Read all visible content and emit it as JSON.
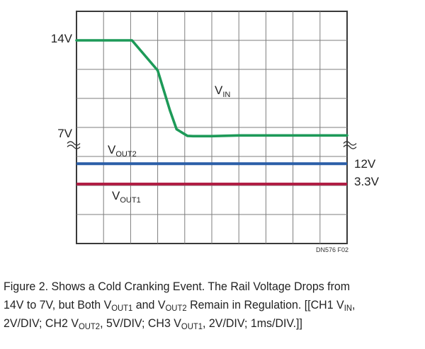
{
  "chart_data": {
    "type": "line",
    "title": "",
    "xlabel": "",
    "ylabel": "",
    "x_divisions": 10,
    "y_divisions": 8,
    "x_unit": "1ms/DIV",
    "grid": true,
    "axis_labels_left": [
      "14V",
      "7V"
    ],
    "axis_labels_right": [
      "12V",
      "3.3V"
    ],
    "series": [
      {
        "name": "VIN",
        "label_main": "V",
        "label_sub": "IN",
        "channel": "CH1",
        "scale": "2V/DIV",
        "color": "#1d9a58",
        "x": [
          0,
          2.05,
          3.0,
          3.45,
          3.7,
          4.1,
          4.3,
          5.0,
          6.0,
          8.0,
          10.0
        ],
        "y": [
          14,
          14,
          11.8,
          8.9,
          7.5,
          7.02,
          7.0,
          7.0,
          7.05,
          7.05,
          7.05
        ]
      },
      {
        "name": "VOUT2",
        "label_main": "V",
        "label_sub": "OUT2",
        "channel": "CH2",
        "scale": "5V/DIV",
        "color": "#2b5fa8",
        "level": "12V",
        "x": [
          0,
          10
        ],
        "y": [
          12,
          12
        ]
      },
      {
        "name": "VOUT1",
        "label_main": "V",
        "label_sub": "OUT1",
        "channel": "CH3",
        "scale": "2V/DIV",
        "color": "#b01e44",
        "level": "3.3V",
        "x": [
          0,
          10
        ],
        "y": [
          3.3,
          3.3
        ]
      }
    ],
    "annotation": "DN576 F02"
  },
  "caption": {
    "line1": "Figure 2. Shows a Cold Cranking Event. The Rail Voltage Drops from",
    "l2_a": "14V to 7V, but Both V",
    "l2_b": "OUT1",
    "l2_c": " and V",
    "l2_d": "OUT2",
    "l2_e": " Remain in Regulation. [[CH1 V",
    "l2_f": "IN",
    "l2_g": ",",
    "l3_a": "2V/DIV; CH2 V",
    "l3_b": "OUT2",
    "l3_c": ", 5V/DIV; CH3 V",
    "l3_d": "OUT1",
    "l3_e": ", 2V/DIV; 1ms/DIV.]]"
  }
}
